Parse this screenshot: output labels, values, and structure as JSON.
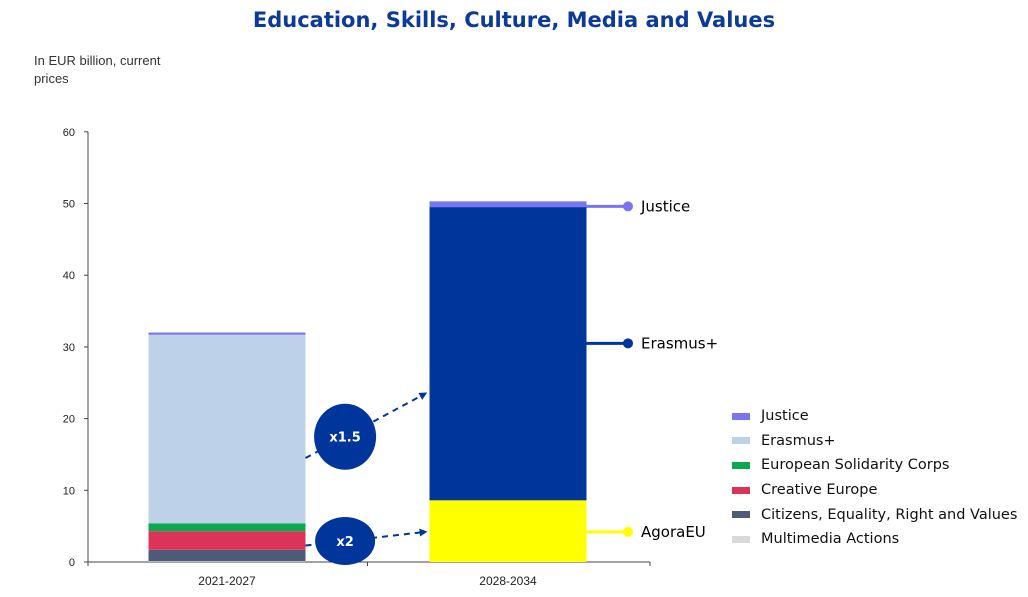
{
  "chart_data": {
    "type": "bar",
    "stacked": true,
    "title": "Education, Skills, Culture, Media and Values",
    "subtitle": "In EUR billion, current prices",
    "xlabel": "",
    "ylabel": "",
    "categories": [
      "2021-2027",
      "2028-2034"
    ],
    "ylim": [
      0,
      60
    ],
    "yticks": [
      0,
      10,
      20,
      30,
      40,
      50,
      60
    ],
    "grid": false,
    "legend_position": "right",
    "series": [
      {
        "name": "Multimedia Actions",
        "color": "#d9d9d9",
        "values": [
          0.1,
          0
        ]
      },
      {
        "name": "Citizens, Equality, Right and Values",
        "color": "#4d5b78",
        "values": [
          1.6,
          0
        ]
      },
      {
        "name": "Creative Europe",
        "color": "#dc3459",
        "values": [
          2.6,
          0
        ]
      },
      {
        "name": "European Solidarity Corps",
        "color": "#0aa84f",
        "values": [
          1.1,
          0
        ]
      },
      {
        "name": "Erasmus+",
        "color": "#bdd1e9",
        "values": [
          26.3,
          0
        ]
      },
      {
        "name": "Justice",
        "color": "#7b74f0",
        "values": [
          0.3,
          0
        ]
      },
      {
        "name": "AgoraEU",
        "color": "#ffff00",
        "values": [
          0,
          8.6
        ]
      },
      {
        "name": "Erasmus+",
        "color": "#00369c",
        "values": [
          0,
          40.9
        ]
      },
      {
        "name": "Justice",
        "color": "#7b74f0",
        "values": [
          0,
          0.8
        ]
      }
    ],
    "legend": [
      {
        "label": "Justice",
        "color": "#7b74f0"
      },
      {
        "label": "Erasmus+",
        "color": "#bdd1e9"
      },
      {
        "label": "European Solidarity Corps",
        "color": "#0aa84f"
      },
      {
        "label": "Creative Europe",
        "color": "#dc3459"
      },
      {
        "label": "Citizens, Equality, Right and Values",
        "color": "#4d5b78"
      },
      {
        "label": "Multimedia Actions",
        "color": "#d9d9d9"
      }
    ],
    "callouts": [
      {
        "label": "Justice",
        "value": 49.6,
        "color": "#7b74f0"
      },
      {
        "label": "Erasmus+",
        "value": 30.5,
        "color": "#00369c"
      },
      {
        "label": "AgoraEU",
        "value": 4.2,
        "color": "#ffff00"
      }
    ],
    "growth_annotations": [
      {
        "label": "x1.5",
        "color": "#00369c",
        "from_value": 14.5,
        "to_value": 23.5
      },
      {
        "label": "x2",
        "color": "#00369c",
        "from_value": 2.3,
        "to_value": 4.2
      }
    ]
  }
}
